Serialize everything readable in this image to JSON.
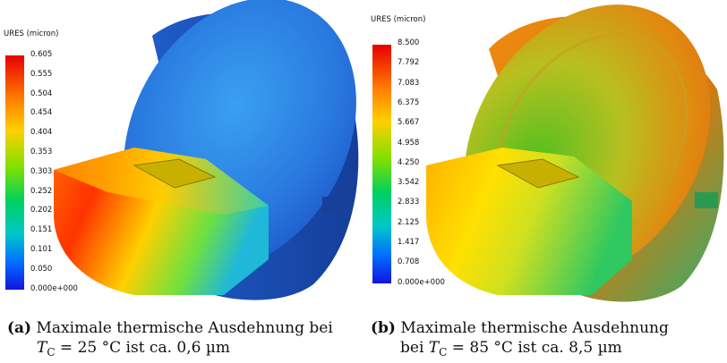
{
  "figure_a": {
    "legend_title": "URES (micron)",
    "colorbar_ticks": [
      "0.605",
      "0.555",
      "0.504",
      "0.454",
      "0.404",
      "0.353",
      "0.303",
      "0.252",
      "0.202",
      "0.151",
      "0.101",
      "0.050",
      "0.000e+000"
    ],
    "caption_tag": "(a)",
    "caption_line1": "Maximale thermische Ausdehnung bei",
    "caption_line2_var": "T",
    "caption_line2_sub": "C",
    "caption_line2_rest": " = 25 °C ist ca. 0,6 µm"
  },
  "figure_b": {
    "legend_title": "URES (micron)",
    "colorbar_ticks": [
      "8.500",
      "7.792",
      "7.083",
      "6.375",
      "5.667",
      "4.958",
      "4.250",
      "3.542",
      "2.833",
      "2.125",
      "1.417",
      "0.708",
      "0.000e+000"
    ],
    "caption_tag": "(b)",
    "caption_line1": "Maximale thermische Ausdehnung",
    "caption_line2_pre": "bei ",
    "caption_line2_var": "T",
    "caption_line2_sub": "C",
    "caption_line2_rest": " = 85 °C ist ca. 8,5 µm"
  },
  "colors": {
    "scale_top": "#e60000",
    "scale_upper": "#ff9900",
    "scale_mid": "#33cc33",
    "scale_lower": "#00cccc",
    "scale_bottom": "#1414e0"
  }
}
